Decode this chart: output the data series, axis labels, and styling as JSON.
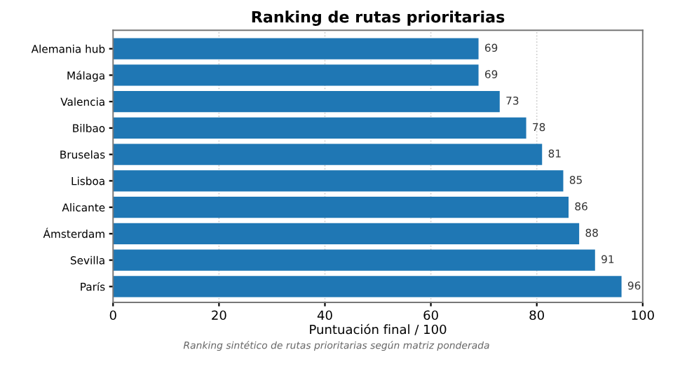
{
  "chart_data": {
    "type": "bar",
    "orientation": "horizontal",
    "title": "Ranking de rutas prioritarias",
    "xlabel": "Puntuación final / 100",
    "categories": [
      "Alemania hub",
      "Málaga",
      "Valencia",
      "Bilbao",
      "Bruselas",
      "Lisboa",
      "Alicante",
      "Ámsterdam",
      "Sevilla",
      "París"
    ],
    "values": [
      69,
      69,
      73,
      78,
      81,
      85,
      86,
      88,
      91,
      96
    ],
    "color": "#1f77b4",
    "xlim": [
      0,
      100
    ],
    "xticks": [
      0,
      20,
      40,
      60,
      80,
      100
    ],
    "grid": "x",
    "data_labels": true,
    "annotations": [
      "Ranking sintético de rutas prioritarias según matriz ponderada"
    ]
  }
}
